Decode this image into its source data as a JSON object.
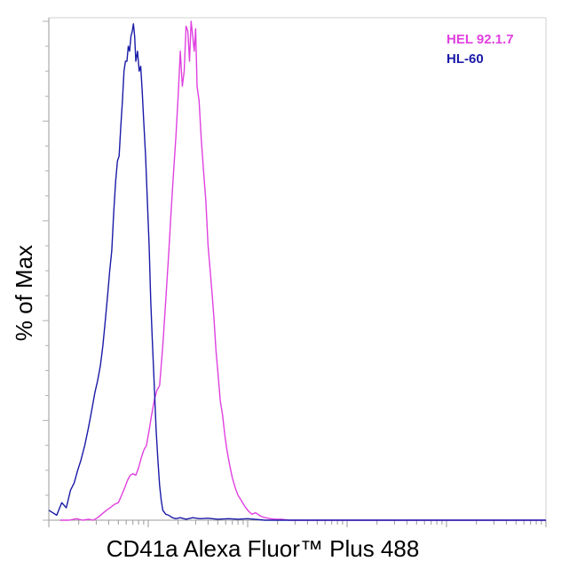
{
  "chart_data": {
    "type": "line",
    "xlabel": "CD41a Alexa Fluor™ Plus 488",
    "ylabel": "% of Max",
    "x_scale": "log",
    "xlim": [
      1,
      100000
    ],
    "ylim": [
      0,
      100
    ],
    "grid": false,
    "legend_position": "top-right",
    "series": [
      {
        "name": "HEL 92.1.7",
        "color": "#e040e0",
        "x": [
          1.3,
          1.6,
          1.9,
          2.2,
          2.5,
          2.8,
          3.1,
          3.4,
          3.8,
          4.2,
          4.6,
          5.0,
          5.4,
          5.8,
          6.2,
          6.6,
          7.0,
          7.5,
          8.0,
          8.5,
          9.0,
          9.6,
          10.2,
          10.8,
          11.5,
          12.2,
          13.0,
          14.0,
          15.0,
          16.0,
          17.0,
          18.0,
          19.0,
          20.0,
          21.0,
          22.0,
          23.0,
          24.0,
          25.0,
          26.0,
          27.0,
          28.0,
          29.0,
          30.0,
          31.0,
          32.5,
          34.0,
          36.0,
          38.0,
          40.0,
          42.0,
          44.0,
          46.0,
          48.0,
          50.0,
          53.0,
          56.0,
          59.0,
          62.0,
          66.0,
          70.0,
          75.0,
          80.0,
          86.0,
          92.0,
          100.0,
          110.0,
          120.0,
          135.0,
          150.0,
          170.0,
          190.0,
          220.0,
          260.0,
          320.0,
          400.0,
          550.0,
          800.0,
          1200.0,
          2000.0,
          4000.0,
          8000.0,
          15000.0,
          30000.0,
          40000.0,
          60000.0,
          100000.0
        ],
        "y": [
          0.0,
          0.0,
          0.3,
          0.0,
          0.2,
          0.0,
          0.5,
          1.2,
          2.0,
          2.6,
          3.2,
          3.5,
          5.0,
          6.5,
          8.0,
          9.0,
          9.3,
          9.0,
          10.5,
          12.5,
          14.0,
          15.0,
          18.0,
          21.0,
          24.0,
          26.0,
          27.0,
          35.0,
          44.0,
          53.0,
          62.0,
          70.0,
          77.0,
          85.0,
          94.0,
          87.0,
          90.0,
          99.0,
          98.0,
          92.0,
          100.0,
          97.0,
          94.0,
          98.5,
          87.0,
          84.0,
          77.0,
          70.0,
          64.0,
          55.0,
          50.0,
          45.0,
          40.0,
          34.0,
          30.0,
          24.0,
          21.0,
          17.0,
          14.0,
          11.0,
          8.5,
          6.5,
          5.0,
          4.0,
          3.0,
          2.0,
          1.2,
          1.5,
          0.8,
          0.5,
          0.3,
          0.2,
          0.2,
          0.0,
          0.0,
          0.0,
          0.0,
          0.0,
          0.0,
          0.0,
          0.0,
          0.0,
          0.0,
          0.0,
          0.0,
          0.0,
          0.0
        ]
      },
      {
        "name": "HL-60",
        "color": "#1a1aa8",
        "x": [
          1.0,
          1.2,
          1.35,
          1.5,
          1.65,
          1.8,
          1.95,
          2.1,
          2.3,
          2.5,
          2.7,
          2.9,
          3.1,
          3.3,
          3.5,
          3.7,
          3.9,
          4.1,
          4.3,
          4.5,
          4.7,
          4.9,
          5.1,
          5.3,
          5.5,
          5.7,
          5.9,
          6.1,
          6.3,
          6.5,
          6.7,
          6.9,
          7.1,
          7.3,
          7.5,
          7.8,
          8.1,
          8.4,
          8.7,
          9.0,
          9.4,
          9.8,
          10.2,
          10.6,
          11.0,
          11.5,
          12.0,
          12.5,
          13.0,
          13.5,
          14.0,
          15.0,
          16.0,
          17.5,
          19.0,
          21.0,
          24.0,
          28.0,
          33.0,
          40.0,
          50.0,
          65.0,
          80.0,
          100.0,
          150.0,
          300.0,
          1000.0,
          10000.0,
          100000.0
        ],
        "y": [
          2.0,
          1.0,
          3.5,
          2.5,
          6.0,
          7.5,
          10.0,
          12.0,
          15.0,
          18.5,
          22.0,
          25.5,
          28.0,
          31.0,
          35.0,
          40.0,
          45.0,
          50.0,
          54.0,
          62.0,
          68.0,
          72.0,
          73.0,
          79.0,
          84.0,
          90.0,
          92.0,
          92.0,
          95.0,
          94.0,
          97.0,
          98.0,
          99.5,
          97.0,
          92.0,
          94.0,
          90.0,
          91.0,
          86.0,
          80.0,
          73.0,
          64.0,
          55.0,
          44.0,
          36.0,
          27.0,
          18.0,
          12.0,
          7.0,
          4.0,
          2.0,
          1.2,
          1.0,
          0.5,
          0.3,
          0.5,
          0.2,
          0.5,
          0.3,
          0.4,
          0.2,
          0.3,
          0.2,
          0.3,
          0.0,
          0.0,
          0.0,
          0.0,
          0.0
        ]
      }
    ]
  }
}
